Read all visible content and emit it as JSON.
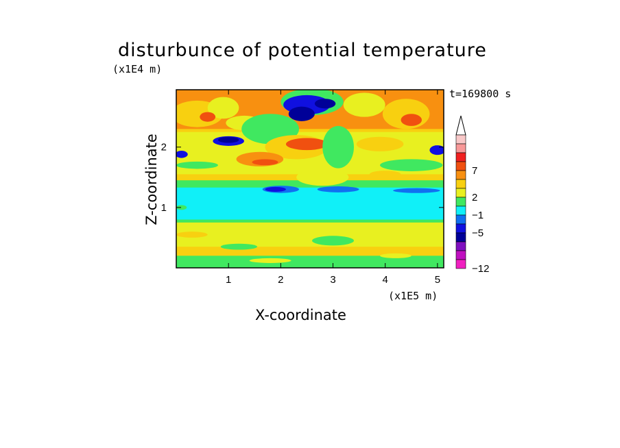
{
  "chart_data": {
    "type": "heatmap",
    "title": "disturbunce of potential temperature",
    "xlabel": "X-coordinate",
    "ylabel": "Z-coordinate",
    "x_unit": "(x1E5 m)",
    "y_unit": "(x1E4 m)",
    "annotation": "t=169800 s",
    "xlim": [
      0,
      5.12
    ],
    "ylim": [
      0,
      2.95
    ],
    "xticks": [
      1,
      2,
      3,
      4,
      5
    ],
    "xtick_labels": [
      "1",
      "2",
      "3",
      "4",
      "5"
    ],
    "yticks": [
      1,
      2
    ],
    "ytick_labels": [
      "1",
      "2"
    ],
    "grid": false,
    "colorbar": {
      "labels": [
        "7",
        "2",
        "−1",
        "−5",
        "−12"
      ],
      "colors": [
        "#f8c8c8",
        "#f89898",
        "#f02020",
        "#f05010",
        "#f89010",
        "#f8d010",
        "#e8f020",
        "#40e860",
        "#10f0f8",
        "#1070f0",
        "#1010e0",
        "#000098",
        "#8010c0",
        "#c010c0",
        "#f020c0"
      ],
      "extend_top": true
    },
    "bands": [
      {
        "z0": 0.0,
        "z1": 0.25,
        "level": "yellow-green mixed"
      },
      {
        "z0": 0.25,
        "z1": 0.75,
        "level": "yellow"
      },
      {
        "z0": 0.75,
        "z1": 1.35,
        "level": "cyan"
      },
      {
        "z0": 1.35,
        "z1": 1.5,
        "level": "blue"
      },
      {
        "z0": 1.5,
        "z1": 2.3,
        "level": "yellow-orange"
      },
      {
        "z0": 2.3,
        "z1": 2.95,
        "level": "orange"
      }
    ]
  }
}
